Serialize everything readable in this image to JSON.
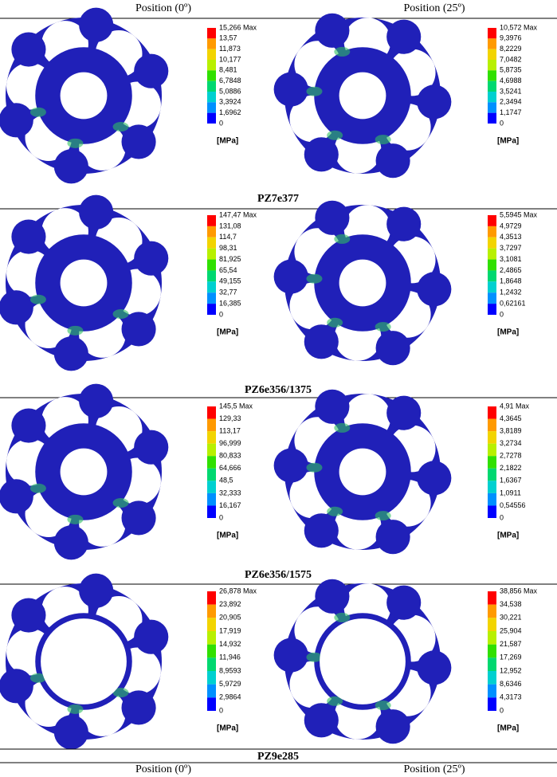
{
  "header": {
    "left": "Position (0º)",
    "right": "Position (25º)"
  },
  "rows": [
    {
      "caption": "PZ7e377",
      "cells": [
        {
          "legend": [
            "15,266 Max",
            "13,57",
            "11,873",
            "10,177",
            "8,481",
            "6,7848",
            "5,0886",
            "3,3924",
            "1,6962",
            "0"
          ],
          "unit": "[MPa]"
        },
        {
          "legend": [
            "10,572 Max",
            "9,3976",
            "8,2229",
            "7,0482",
            "5,8735",
            "4,6988",
            "3,5241",
            "2,3494",
            "1,1747",
            "0"
          ],
          "unit": "[MPa]"
        }
      ]
    },
    {
      "caption": "PZ6e356/1375",
      "cells": [
        {
          "legend": [
            "147,47 Max",
            "131,08",
            "114,7",
            "98,31",
            "81,925",
            "65,54",
            "49,155",
            "32,77",
            "16,385",
            "0"
          ],
          "unit": "[MPa]"
        },
        {
          "legend": [
            "5,5945 Max",
            "4,9729",
            "4,3513",
            "3,7297",
            "3,1081",
            "2,4865",
            "1,8648",
            "1,2432",
            "0,62161",
            "0"
          ],
          "unit": "[MPa]"
        }
      ]
    },
    {
      "caption": "PZ6e356/1575",
      "cells": [
        {
          "legend": [
            "145,5 Max",
            "129,33",
            "113,17",
            "96,999",
            "80,833",
            "64,666",
            "48,5",
            "32,333",
            "16,167",
            "0"
          ],
          "unit": "[MPa]"
        },
        {
          "legend": [
            "4,91 Max",
            "4,3645",
            "3,8189",
            "3,2734",
            "2,7278",
            "2,1822",
            "1,6367",
            "1,0911",
            "0,54556",
            "0"
          ],
          "unit": "[MPa]"
        }
      ]
    },
    {
      "caption": "PZ9e285",
      "cells": [
        {
          "legend": [
            "26,878 Max",
            "23,892",
            "20,905",
            "17,919",
            "14,932",
            "11,946",
            "8,9593",
            "5,9729",
            "2,9864",
            "0"
          ],
          "unit": "[MPa]"
        },
        {
          "legend": [
            "38,856 Max",
            "34,538",
            "30,221",
            "25,904",
            "21,587",
            "17,269",
            "12,952",
            "8,6346",
            "4,3173",
            "0"
          ],
          "unit": "[MPa]"
        }
      ]
    }
  ],
  "footer": {
    "left": "Position (0º)",
    "right": "Position (25º)"
  }
}
